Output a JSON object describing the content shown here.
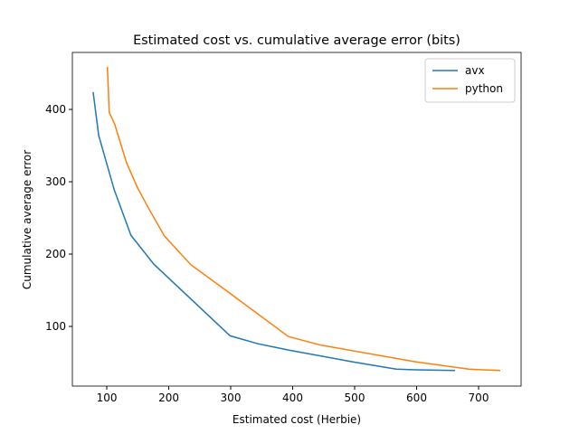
{
  "chart_data": {
    "type": "line",
    "title": "Estimated cost vs. cumulative average error (bits)",
    "xlabel": "Estimated cost (Herbie)",
    "ylabel": "Cumulative average error",
    "xlim": [
      44.5,
      768.6
    ],
    "ylim": [
      17.5,
      478.75
    ],
    "xticks": [
      100,
      200,
      300,
      400,
      500,
      600,
      700
    ],
    "yticks": [
      100,
      200,
      300,
      400
    ],
    "legend": "upper right",
    "series": [
      {
        "name": "avx",
        "color": "#1f77b4",
        "x": [
          78,
          87,
          112,
          139,
          176,
          299,
          344,
          395,
          497,
          567,
          599,
          662
        ],
        "values": [
          424,
          364,
          289,
          226,
          186,
          87,
          76,
          67,
          51,
          41,
          40,
          39
        ]
      },
      {
        "name": "python",
        "color": "#ff7f0e",
        "x": [
          101,
          104,
          113,
          132,
          150,
          169,
          193,
          236,
          300,
          393,
          446,
          599,
          684,
          706,
          735
        ],
        "values": [
          459,
          396,
          379,
          326,
          291,
          261,
          225,
          185,
          145,
          86,
          74,
          51,
          41,
          40,
          39
        ]
      }
    ]
  }
}
